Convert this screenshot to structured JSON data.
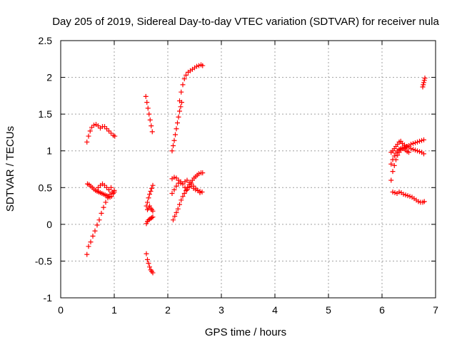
{
  "chart_data": {
    "type": "scatter",
    "title": "Day 205 of 2019, Sidereal Day-to-day VTEC variation (SDTVAR) for receiver nula",
    "xlabel": "GPS time / hours",
    "ylabel": "SDTVAR / TECUs",
    "xlim": [
      0,
      7
    ],
    "ylim": [
      -1,
      2.5
    ],
    "grid": true,
    "marker": "plus",
    "series_color": "#ff0000",
    "xticks": [
      0,
      1,
      2,
      3,
      4,
      5,
      6,
      7
    ],
    "xtick_labels": [
      "0",
      "1",
      "2",
      "3",
      "4",
      "5",
      "6",
      "7"
    ],
    "yticks": [
      -1,
      -0.5,
      0,
      0.5,
      1,
      1.5,
      2,
      2.5
    ],
    "ytick_labels": [
      "-1",
      "-0.5",
      "0",
      "0.5",
      "1",
      "1.5",
      "2",
      "2.5"
    ],
    "arcs": [
      {
        "t": [
          0.49,
          0.52,
          0.55,
          0.58,
          0.62,
          0.66,
          0.7,
          0.74,
          0.78,
          0.82,
          0.86,
          0.9,
          0.94,
          0.98,
          1.01
        ],
        "y": [
          1.12,
          1.2,
          1.27,
          1.32,
          1.35,
          1.36,
          1.34,
          1.31,
          1.33,
          1.33,
          1.3,
          1.27,
          1.24,
          1.21,
          1.2
        ]
      },
      {
        "t": [
          0.5,
          0.53,
          0.56,
          0.59,
          0.62,
          0.65,
          0.68,
          0.71,
          0.74,
          0.77,
          0.8,
          0.83,
          0.86,
          0.89,
          0.92,
          0.95,
          0.98,
          1.0
        ],
        "y": [
          0.55,
          0.54,
          0.52,
          0.5,
          0.48,
          0.46,
          0.45,
          0.44,
          0.43,
          0.42,
          0.41,
          0.4,
          0.39,
          0.38,
          0.37,
          0.38,
          0.42,
          0.44
        ]
      },
      {
        "t": [
          0.49,
          0.52,
          0.56,
          0.6,
          0.64,
          0.68,
          0.72,
          0.76,
          0.8,
          0.84,
          0.88,
          0.92,
          0.96,
          1.0
        ],
        "y": [
          -0.41,
          -0.3,
          -0.24,
          -0.16,
          -0.09,
          -0.01,
          0.06,
          0.15,
          0.23,
          0.3,
          0.36,
          0.41,
          0.44,
          0.46
        ]
      },
      {
        "t": [
          0.7,
          0.74,
          0.78,
          0.82,
          0.86,
          0.9,
          0.94
        ],
        "y": [
          0.5,
          0.53,
          0.55,
          0.53,
          0.5,
          0.47,
          0.5
        ]
      },
      {
        "t": [
          1.59,
          1.61,
          1.63,
          1.65,
          1.67,
          1.69,
          1.71
        ],
        "y": [
          1.74,
          1.66,
          1.58,
          1.5,
          1.42,
          1.34,
          1.26
        ]
      },
      {
        "t": [
          1.6,
          1.62,
          1.64,
          1.66,
          1.68,
          1.7,
          1.72
        ],
        "y": [
          0.01,
          0.04,
          0.06,
          0.07,
          0.08,
          0.09,
          0.1
        ]
      },
      {
        "t": [
          1.6,
          1.62,
          1.64,
          1.66,
          1.68,
          1.7,
          1.72
        ],
        "y": [
          0.25,
          0.3,
          0.36,
          0.41,
          0.45,
          0.49,
          0.53
        ]
      },
      {
        "t": [
          1.62,
          1.64,
          1.66,
          1.68,
          1.7,
          1.72
        ],
        "y": [
          0.2,
          0.22,
          0.25,
          0.22,
          0.2,
          0.18
        ]
      },
      {
        "t": [
          1.6,
          1.62,
          1.64,
          1.66,
          1.68,
          1.7,
          1.72
        ],
        "y": [
          -0.4,
          -0.48,
          -0.53,
          -0.58,
          -0.62,
          -0.64,
          -0.66
        ]
      },
      {
        "t": [
          2.08,
          2.1,
          2.12,
          2.14,
          2.16,
          2.18,
          2.2,
          2.22,
          2.24,
          2.26
        ],
        "y": [
          1.0,
          1.07,
          1.14,
          1.22,
          1.3,
          1.38,
          1.46,
          1.54,
          1.6,
          1.66
        ]
      },
      {
        "t": [
          2.22,
          2.25,
          2.28,
          2.31,
          2.34,
          2.38,
          2.42,
          2.46,
          2.5,
          2.54,
          2.58,
          2.62,
          2.65
        ],
        "y": [
          1.68,
          1.8,
          1.9,
          1.98,
          2.03,
          2.07,
          2.09,
          2.11,
          2.13,
          2.15,
          2.16,
          2.17,
          2.16
        ]
      },
      {
        "t": [
          2.1,
          2.13,
          2.16,
          2.19,
          2.22,
          2.25,
          2.28,
          2.31,
          2.34,
          2.37,
          2.4,
          2.43,
          2.46,
          2.49,
          2.52,
          2.55,
          2.58,
          2.62,
          2.65
        ],
        "y": [
          0.06,
          0.11,
          0.16,
          0.21,
          0.27,
          0.33,
          0.38,
          0.42,
          0.46,
          0.5,
          0.54,
          0.57,
          0.6,
          0.63,
          0.65,
          0.67,
          0.69,
          0.7,
          0.7
        ]
      },
      {
        "t": [
          2.08,
          2.12,
          2.16,
          2.2,
          2.24,
          2.28,
          2.32,
          2.36,
          2.4,
          2.44,
          2.48,
          2.52,
          2.56,
          2.6,
          2.64
        ],
        "y": [
          0.62,
          0.64,
          0.63,
          0.6,
          0.56,
          0.55,
          0.58,
          0.6,
          0.57,
          0.52,
          0.49,
          0.47,
          0.46,
          0.45,
          0.44
        ]
      },
      {
        "t": [
          2.08,
          2.12,
          2.16,
          2.2,
          2.24,
          2.28,
          2.32,
          2.36,
          2.4,
          2.44,
          2.48,
          2.52,
          2.56,
          2.6
        ],
        "y": [
          0.42,
          0.47,
          0.52,
          0.56,
          0.58,
          0.55,
          0.5,
          0.47,
          0.51,
          0.55,
          0.52,
          0.49,
          0.46,
          0.43
        ]
      },
      {
        "t": [
          6.17,
          6.2,
          6.23,
          6.26,
          6.29,
          6.32,
          6.35,
          6.38,
          6.41,
          6.44,
          6.47,
          6.5,
          6.54,
          6.58,
          6.62,
          6.66,
          6.7,
          6.74,
          6.78
        ],
        "y": [
          0.6,
          0.72,
          0.8,
          0.88,
          0.94,
          0.98,
          1.01,
          1.03,
          1.04,
          1.05,
          1.06,
          1.07,
          1.09,
          1.1,
          1.11,
          1.12,
          1.13,
          1.14,
          1.15
        ]
      },
      {
        "t": [
          6.17,
          6.2,
          6.23,
          6.26,
          6.29,
          6.32,
          6.35,
          6.38,
          6.42,
          6.46,
          6.5,
          6.54,
          6.58,
          6.62,
          6.66,
          6.7,
          6.74,
          6.78
        ],
        "y": [
          0.98,
          1.0,
          1.03,
          1.06,
          1.09,
          1.12,
          1.13,
          1.1,
          1.08,
          1.06,
          1.05,
          1.03,
          1.02,
          1.01,
          1.0,
          0.99,
          0.98,
          0.96
        ]
      },
      {
        "t": [
          6.17,
          6.2,
          6.23,
          6.26,
          6.29,
          6.32,
          6.35,
          6.38,
          6.41,
          6.44,
          6.47,
          6.5
        ],
        "y": [
          0.82,
          0.88,
          0.93,
          0.97,
          1.0,
          1.02,
          1.03,
          1.04,
          1.03,
          1.01,
          0.99,
          0.98
        ]
      },
      {
        "t": [
          6.2,
          6.24,
          6.28,
          6.32,
          6.36,
          6.4,
          6.44,
          6.48,
          6.52,
          6.56,
          6.6,
          6.64,
          6.68,
          6.72,
          6.76,
          6.79
        ],
        "y": [
          0.44,
          0.43,
          0.42,
          0.44,
          0.43,
          0.41,
          0.4,
          0.39,
          0.38,
          0.37,
          0.35,
          0.33,
          0.31,
          0.3,
          0.3,
          0.31
        ]
      },
      {
        "t": [
          6.76,
          6.77,
          6.78,
          6.79,
          6.8
        ],
        "y": [
          1.87,
          1.9,
          1.93,
          1.96,
          1.99
        ]
      }
    ]
  }
}
